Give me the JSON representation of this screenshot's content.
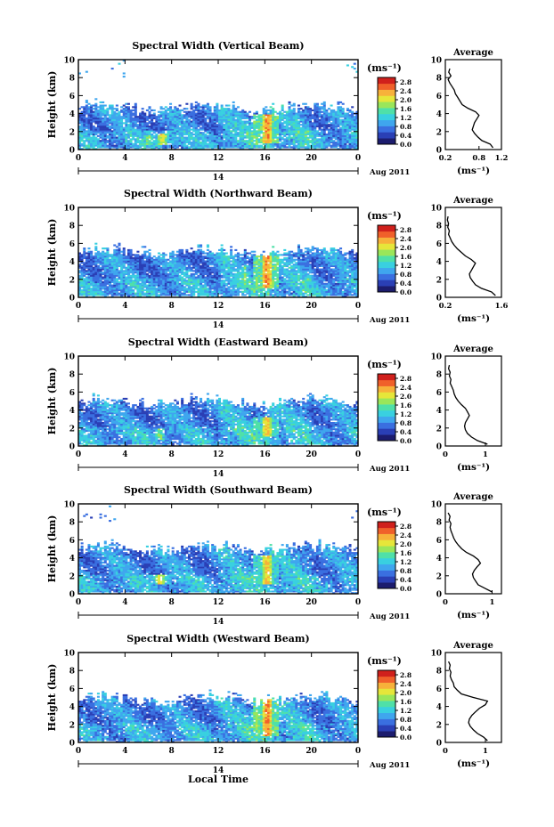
{
  "colors": {
    "colorbar": [
      "#1c1c6e",
      "#2a3fb5",
      "#3a6fe0",
      "#3fa6ee",
      "#39d0e0",
      "#4fe0a8",
      "#9ae65a",
      "#e6e63a",
      "#f7b13a",
      "#f0602a",
      "#d0201c"
    ]
  },
  "common": {
    "y_label": "Height (km)",
    "unit_label": "(ms⁻¹)",
    "date_label": "Aug 2011",
    "day_label": "14",
    "profile_title": "Average",
    "x_axis_title": "Local Time"
  },
  "chart_data": [
    {
      "type": "heatmap",
      "title": "Spectral Width (Vertical Beam)",
      "x_ticks": [
        "0",
        "4",
        "8",
        "12",
        "16",
        "20",
        "0"
      ],
      "y_ticks": [
        "0",
        "2",
        "4",
        "6",
        "8",
        "10"
      ],
      "xlim": [
        0,
        24
      ],
      "ylim": [
        0,
        10
      ],
      "colorbar_ticks": [
        "0.0",
        "0.4",
        "0.8",
        "1.2",
        "1.6",
        "2.0",
        "2.4",
        "2.8"
      ],
      "colorbar_range": [
        0,
        3.0
      ],
      "seed": 11,
      "layer_top": 4.4,
      "sparse_high": true,
      "hot_spots": [
        {
          "x": 16.2,
          "y0": 0.8,
          "y1": 4.0,
          "v": 2.8
        },
        {
          "x": 7.2,
          "y0": 0.6,
          "y1": 1.8,
          "v": 2.4
        },
        {
          "x": 6.0,
          "y0": 0.6,
          "y1": 1.6,
          "v": 2.0
        }
      ],
      "profile": {
        "xlim": [
          0.2,
          1.2
        ],
        "x_ticks": [
          "0.2",
          "0.8",
          "1.2"
        ],
        "x_tick_values": [
          0.2,
          0.8,
          1.2
        ],
        "heights": [
          0.2,
          0.6,
          1.0,
          1.4,
          1.8,
          2.2,
          2.6,
          3.0,
          3.4,
          3.8,
          4.2,
          4.6,
          5.0,
          5.4,
          5.8,
          6.2,
          6.6,
          7.0,
          7.4,
          7.8,
          8.2,
          8.6,
          9.0
        ],
        "values": [
          1.05,
          1.0,
          0.85,
          0.78,
          0.72,
          0.68,
          0.7,
          0.72,
          0.76,
          0.8,
          0.74,
          0.6,
          0.5,
          0.46,
          0.42,
          0.38,
          0.36,
          0.32,
          0.28,
          0.25,
          0.3,
          0.26,
          0.28
        ]
      }
    },
    {
      "type": "heatmap",
      "title": "Spectral Width (Northward Beam)",
      "x_ticks": [
        "0",
        "4",
        "8",
        "12",
        "16",
        "20",
        "0"
      ],
      "y_ticks": [
        "0",
        "2",
        "4",
        "6",
        "8",
        "10"
      ],
      "xlim": [
        0,
        24
      ],
      "ylim": [
        0,
        10
      ],
      "colorbar_ticks": [
        "0.0",
        "0.4",
        "0.8",
        "1.2",
        "1.6",
        "2.0",
        "2.4",
        "2.8"
      ],
      "colorbar_range": [
        0,
        3.0
      ],
      "seed": 23,
      "layer_top": 4.9,
      "sparse_high": false,
      "hot_spots": [
        {
          "x": 16.2,
          "y0": 1.0,
          "y1": 4.6,
          "v": 2.8
        },
        {
          "x": 14.3,
          "y0": 1.0,
          "y1": 3.5,
          "v": 1.8
        }
      ],
      "profile": {
        "xlim": [
          0.2,
          1.6
        ],
        "x_ticks": [
          "0.2",
          "1.6"
        ],
        "x_tick_values": [
          0.2,
          1.6
        ],
        "heights": [
          0.2,
          0.6,
          1.0,
          1.4,
          1.8,
          2.2,
          2.6,
          3.0,
          3.4,
          3.8,
          4.2,
          4.6,
          5.0,
          5.4,
          5.8,
          6.2,
          6.6,
          7.0,
          7.4,
          7.8,
          8.2,
          8.6,
          9.0
        ],
        "values": [
          1.45,
          1.35,
          1.1,
          0.95,
          0.88,
          0.82,
          0.8,
          0.85,
          0.9,
          0.95,
          0.85,
          0.7,
          0.6,
          0.5,
          0.42,
          0.36,
          0.32,
          0.28,
          0.3,
          0.26,
          0.28,
          0.25,
          0.27
        ]
      }
    },
    {
      "type": "heatmap",
      "title": "Spectral Width (Eastward Beam)",
      "x_ticks": [
        "0",
        "4",
        "8",
        "12",
        "16",
        "20",
        "0"
      ],
      "y_ticks": [
        "0",
        "2",
        "4",
        "6",
        "8",
        "10"
      ],
      "xlim": [
        0,
        24
      ],
      "ylim": [
        0,
        10
      ],
      "colorbar_ticks": [
        "0.0",
        "0.4",
        "0.8",
        "1.2",
        "1.6",
        "2.0",
        "2.4",
        "2.8"
      ],
      "colorbar_range": [
        0,
        3.0
      ],
      "seed": 37,
      "layer_top": 4.7,
      "sparse_high": false,
      "hot_spots": [
        {
          "x": 16.2,
          "y0": 1.0,
          "y1": 3.2,
          "v": 2.6
        },
        {
          "x": 7.0,
          "y0": 0.8,
          "y1": 2.0,
          "v": 2.0
        }
      ],
      "profile": {
        "xlim": [
          0,
          1.4
        ],
        "x_ticks": [
          "0",
          "1"
        ],
        "x_tick_values": [
          0,
          1
        ],
        "heights": [
          0.2,
          0.6,
          1.0,
          1.4,
          1.8,
          2.2,
          2.6,
          3.0,
          3.4,
          3.8,
          4.2,
          4.6,
          5.0,
          5.4,
          5.8,
          6.2,
          6.6,
          7.0,
          7.4,
          7.8,
          8.2,
          8.6,
          9.0
        ],
        "values": [
          1.05,
          0.8,
          0.65,
          0.55,
          0.5,
          0.48,
          0.5,
          0.55,
          0.6,
          0.55,
          0.5,
          0.4,
          0.32,
          0.26,
          0.22,
          0.2,
          0.16,
          0.12,
          0.14,
          0.1,
          0.12,
          0.08,
          0.1
        ]
      }
    },
    {
      "type": "heatmap",
      "title": "Spectral Width (Southward Beam)",
      "x_ticks": [
        "0",
        "4",
        "8",
        "12",
        "16",
        "20",
        "0"
      ],
      "y_ticks": [
        "0",
        "2",
        "4",
        "6",
        "8",
        "10"
      ],
      "xlim": [
        0,
        24
      ],
      "ylim": [
        0,
        10
      ],
      "colorbar_ticks": [
        "0.0",
        "0.4",
        "0.8",
        "1.2",
        "1.6",
        "2.0",
        "2.4",
        "2.8"
      ],
      "colorbar_range": [
        0,
        3.0
      ],
      "seed": 51,
      "layer_top": 4.8,
      "sparse_high": true,
      "hot_spots": [
        {
          "x": 16.2,
          "y0": 1.0,
          "y1": 4.2,
          "v": 2.6
        },
        {
          "x": 7.0,
          "y0": 1.0,
          "y1": 2.2,
          "v": 2.4
        }
      ],
      "profile": {
        "xlim": [
          0,
          1.2
        ],
        "x_ticks": [
          "0",
          "1"
        ],
        "x_tick_values": [
          0,
          1
        ],
        "heights": [
          0.2,
          0.6,
          1.0,
          1.4,
          1.8,
          2.2,
          2.6,
          3.0,
          3.4,
          3.8,
          4.2,
          4.6,
          5.0,
          5.4,
          5.8,
          6.2,
          6.6,
          7.0,
          7.4,
          7.8,
          8.2,
          8.6,
          9.0
        ],
        "values": [
          1.0,
          0.85,
          0.7,
          0.65,
          0.6,
          0.58,
          0.62,
          0.68,
          0.75,
          0.7,
          0.6,
          0.45,
          0.35,
          0.28,
          0.22,
          0.18,
          0.15,
          0.12,
          0.1,
          0.12,
          0.08,
          0.1,
          0.06
        ]
      }
    },
    {
      "type": "heatmap",
      "title": "Spectral Width (Westward Beam)",
      "x_ticks": [
        "0",
        "4",
        "8",
        "12",
        "16",
        "20",
        "0"
      ],
      "y_ticks": [
        "0",
        "2",
        "4",
        "6",
        "8",
        "10"
      ],
      "xlim": [
        0,
        24
      ],
      "ylim": [
        0,
        10
      ],
      "colorbar_ticks": [
        "0.0",
        "0.4",
        "0.8",
        "1.2",
        "1.6",
        "2.0",
        "2.4",
        "2.8"
      ],
      "colorbar_range": [
        0,
        3.0
      ],
      "seed": 67,
      "layer_top": 4.6,
      "sparse_high": false,
      "hot_spots": [
        {
          "x": 16.2,
          "y0": 0.8,
          "y1": 5.0,
          "v": 2.8
        },
        {
          "x": 15.3,
          "y0": 1.2,
          "y1": 3.8,
          "v": 2.0
        }
      ],
      "profile": {
        "xlim": [
          0,
          1.4
        ],
        "x_ticks": [
          "0",
          "1"
        ],
        "x_tick_values": [
          0,
          1
        ],
        "heights": [
          0.2,
          0.6,
          1.0,
          1.4,
          1.8,
          2.2,
          2.6,
          3.0,
          3.4,
          3.8,
          4.2,
          4.6,
          5.0,
          5.4,
          5.8,
          6.2,
          6.6,
          7.0,
          7.4,
          7.8,
          8.2,
          8.6,
          9.0
        ],
        "values": [
          1.05,
          0.95,
          0.8,
          0.7,
          0.62,
          0.58,
          0.6,
          0.66,
          0.75,
          0.85,
          1.0,
          1.05,
          0.7,
          0.4,
          0.3,
          0.22,
          0.2,
          0.15,
          0.12,
          0.14,
          0.1,
          0.12,
          0.08
        ]
      }
    }
  ]
}
